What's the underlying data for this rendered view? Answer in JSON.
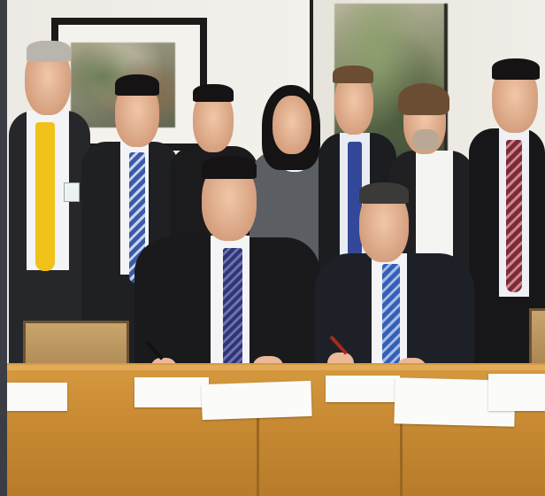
{
  "scene": {
    "kind": "photo",
    "colors": {
      "table": "#c98b33",
      "wall": "#eeece6",
      "suit_dark": "#1f1f23",
      "tie_yellow": "#f0c21a",
      "tie_blue": "#3b5aa8"
    }
  }
}
